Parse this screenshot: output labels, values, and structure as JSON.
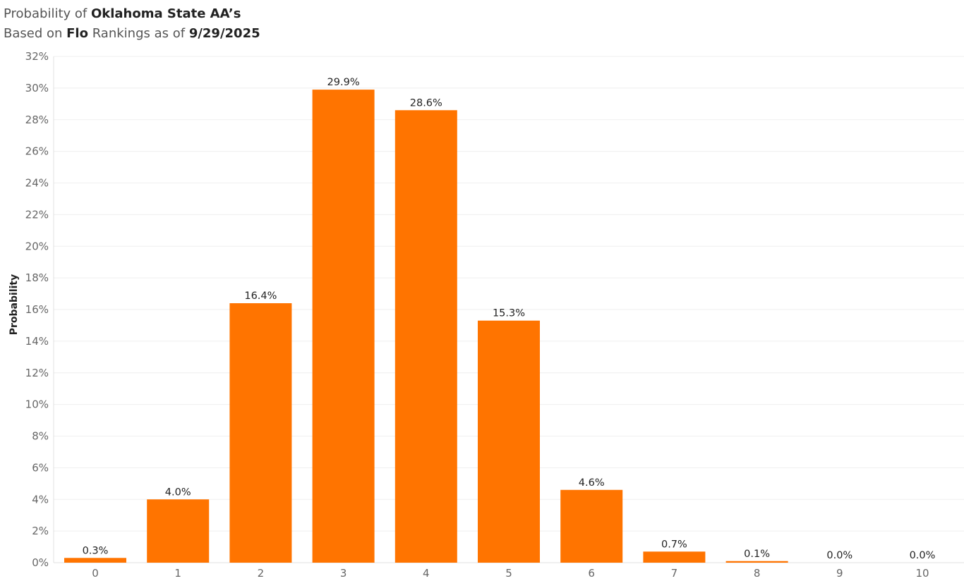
{
  "title": {
    "line1_prefix": "Probability of ",
    "line1_bold": "Oklahoma State AA’s",
    "line2_prefix": "Based on ",
    "line2_bold1": "Flo",
    "line2_mid": " Rankings as of ",
    "line2_bold2": "9/29/2025"
  },
  "colors": {
    "bar": "#FF7400",
    "grid": "#EFEFEF",
    "axis": "#E0E0E0"
  },
  "chart_data": {
    "type": "bar",
    "categories": [
      "0",
      "1",
      "2",
      "3",
      "4",
      "5",
      "6",
      "7",
      "8",
      "9",
      "10"
    ],
    "values": [
      0.3,
      4.0,
      16.4,
      29.9,
      28.6,
      15.3,
      4.6,
      0.7,
      0.1,
      0.0,
      0.0
    ],
    "data_labels": [
      "0.3%",
      "4.0%",
      "16.4%",
      "29.9%",
      "28.6%",
      "15.3%",
      "4.6%",
      "0.7%",
      "0.1%",
      "0.0%",
      "0.0%"
    ],
    "ylabel": "Probability",
    "xlabel": "",
    "ylim": [
      0,
      32
    ],
    "yticks": [
      0,
      2,
      4,
      6,
      8,
      10,
      12,
      14,
      16,
      18,
      20,
      22,
      24,
      26,
      28,
      30,
      32
    ],
    "ytick_labels": [
      "0%",
      "2%",
      "4%",
      "6%",
      "8%",
      "10%",
      "12%",
      "14%",
      "16%",
      "18%",
      "20%",
      "22%",
      "24%",
      "26%",
      "28%",
      "30%",
      "32%"
    ],
    "grid": true,
    "legend": "none"
  }
}
